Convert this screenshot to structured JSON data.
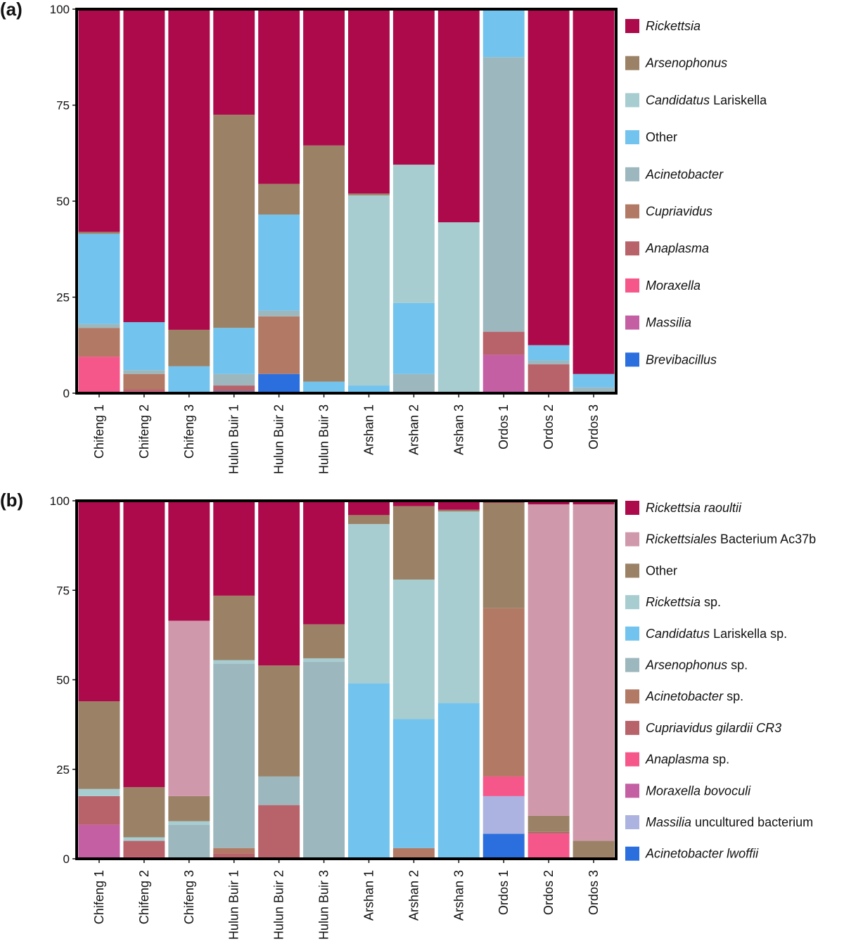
{
  "chart_data": [
    {
      "type": "bar",
      "stacked": true,
      "panel_label": "(a)",
      "title": "",
      "xlabel": "",
      "ylabel": "",
      "ylim": [
        0,
        100
      ],
      "yticks": [
        "0",
        "25",
        "50",
        "75",
        "100"
      ],
      "categories": [
        "Chifeng 1",
        "Chifeng 2",
        "Chifeng 3",
        "Hulun Buir 1",
        "Hulun Buir 2",
        "Hulun Buir 3",
        "Arshan 1",
        "Arshan 2",
        "Arshan 3",
        "Ordos 1",
        "Ordos 2",
        "Ordos 3"
      ],
      "legend": [
        {
          "text": "Rickettsia",
          "italic": "Rickettsia",
          "rest": ""
        },
        {
          "text": "Arsenophonus",
          "italic": "Arsenophonus",
          "rest": ""
        },
        {
          "text": "Candidatus Lariskella",
          "italic": "Candidatus",
          "rest": " Lariskella"
        },
        {
          "text": "Other",
          "italic": "",
          "rest": "Other"
        },
        {
          "text": "Acinetobacter",
          "italic": "Acinetobacter",
          "rest": ""
        },
        {
          "text": "Cupriavidus",
          "italic": "Cupriavidus",
          "rest": ""
        },
        {
          "text": "Anaplasma",
          "italic": "Anaplasma",
          "rest": ""
        },
        {
          "text": "Moraxella",
          "italic": "Moraxella",
          "rest": ""
        },
        {
          "text": "Massilia",
          "italic": "Massilia",
          "rest": ""
        },
        {
          "text": "Brevibacillus",
          "italic": "Brevibacillus",
          "rest": ""
        }
      ],
      "series": [
        {
          "name": "Brevibacillus",
          "color": "#2b6fde",
          "values": [
            0,
            0,
            0,
            0.5,
            5,
            0,
            0,
            0,
            0,
            0,
            0,
            0
          ]
        },
        {
          "name": "Massilia",
          "color": "#c45fa4",
          "values": [
            0,
            0,
            0,
            0,
            0,
            0,
            0,
            0,
            0,
            10,
            0,
            0
          ]
        },
        {
          "name": "Moraxella",
          "color": "#f5578a",
          "values": [
            9.5,
            0.5,
            0,
            0,
            0,
            0,
            0,
            0,
            0,
            0,
            0.5,
            0
          ]
        },
        {
          "name": "Anaplasma",
          "color": "#b8626a",
          "values": [
            0,
            0.5,
            0,
            1.5,
            0,
            0,
            0,
            0,
            0,
            6,
            7,
            0
          ]
        },
        {
          "name": "Cupriavidus",
          "color": "#b27964",
          "values": [
            7.5,
            4,
            0,
            0,
            15,
            0,
            0,
            0,
            0,
            0,
            0,
            0
          ]
        },
        {
          "name": "Acinetobacter",
          "color": "#9cb7bd",
          "values": [
            1,
            1,
            0,
            3,
            1.5,
            0,
            0,
            5,
            0,
            71.5,
            1,
            1.5
          ]
        },
        {
          "name": "Other",
          "color": "#72c3ed",
          "values": [
            23.5,
            12.5,
            7,
            12,
            25,
            3,
            2,
            18.5,
            0,
            12.5,
            4,
            3.5
          ]
        },
        {
          "name": "Candidatus Lariskella",
          "color": "#a7cdd1",
          "values": [
            0,
            0,
            0,
            0,
            0,
            0,
            49.5,
            36,
            44.5,
            0,
            0,
            0
          ]
        },
        {
          "name": "Arsenophonus",
          "color": "#9b8266",
          "values": [
            0.5,
            0,
            9.5,
            55.5,
            8,
            61.5,
            0.5,
            0,
            0,
            0,
            0,
            0
          ]
        },
        {
          "name": "Rickettsia",
          "color": "#ac0a4a",
          "values": [
            58,
            81.5,
            83.5,
            27.5,
            45.5,
            35.5,
            48,
            40.5,
            55.5,
            0,
            87.5,
            95
          ]
        }
      ]
    },
    {
      "type": "bar",
      "stacked": true,
      "panel_label": "(b)",
      "title": "",
      "xlabel": "",
      "ylabel": "",
      "ylim": [
        0,
        100
      ],
      "yticks": [
        "0",
        "25",
        "50",
        "75",
        "100"
      ],
      "categories": [
        "Chifeng 1",
        "Chifeng 2",
        "Chifeng 3",
        "Hulun Buir 1",
        "Hulun Buir 2",
        "Hulun Buir 3",
        "Arshan 1",
        "Arshan 2",
        "Arshan 3",
        "Ordos 1",
        "Ordos 2",
        "Ordos 3"
      ],
      "legend": [
        {
          "text": "Rickettsia raoultii",
          "italic": "Rickettsia raoultii",
          "rest": ""
        },
        {
          "text": "Rickettsiales Bacterium Ac37b",
          "italic": "Rickettsiales",
          "rest": " Bacterium Ac37b"
        },
        {
          "text": "Other",
          "italic": "",
          "rest": "Other"
        },
        {
          "text": "Rickettsia sp.",
          "italic": "Rickettsia",
          "rest": " sp."
        },
        {
          "text": "Candidatus Lariskella sp.",
          "italic": "Candidatus",
          "rest": " Lariskella sp."
        },
        {
          "text": "Arsenophonus sp.",
          "italic": "Arsenophonus",
          "rest": " sp."
        },
        {
          "text": "Acinetobacter sp.",
          "italic": "Acinetobacter",
          "rest": " sp."
        },
        {
          "text": "Cupriavidus gilardii CR3",
          "italic": "Cupriavidus gilardii CR3",
          "rest": ""
        },
        {
          "text": "Anaplasma sp.",
          "italic": "Anaplasma",
          "rest": " sp."
        },
        {
          "text": "Moraxella bovoculi",
          "italic": "Moraxella bovoculi",
          "rest": ""
        },
        {
          "text": "Massilia uncultured bacterium",
          "italic": "Massilia",
          "rest": " uncultured bacterium"
        },
        {
          "text": "Acinetobacter lwoffii",
          "italic": "Acinetobacter lwoffii",
          "rest": ""
        }
      ],
      "series": [
        {
          "name": "Acinetobacter lwoffii",
          "color": "#2b6fde",
          "values": [
            0,
            0,
            0,
            0,
            0,
            0,
            0,
            0,
            0,
            7,
            0,
            0
          ]
        },
        {
          "name": "Massilia uncultured bacterium",
          "color": "#adb3e0",
          "values": [
            0,
            0,
            0,
            0,
            0,
            0,
            0,
            0,
            0,
            10.5,
            0,
            0
          ]
        },
        {
          "name": "Moraxella bovoculi",
          "color": "#c45fa4",
          "values": [
            9.5,
            0,
            0,
            0,
            0,
            0,
            0,
            0,
            0,
            0,
            0,
            0
          ]
        },
        {
          "name": "Anaplasma sp.",
          "color": "#f5578a",
          "values": [
            0,
            0.5,
            0,
            0,
            0,
            0,
            0,
            0,
            0,
            5.5,
            7,
            0
          ]
        },
        {
          "name": "Cupriavidus gilardii CR3",
          "color": "#b8626a",
          "values": [
            8,
            4.5,
            0,
            1.5,
            15,
            0,
            0,
            0,
            0,
            0,
            0.5,
            0
          ]
        },
        {
          "name": "Acinetobacter sp.",
          "color": "#b27964",
          "values": [
            0,
            0,
            0,
            1.5,
            0,
            0,
            0,
            3,
            0,
            47,
            0,
            0.5
          ]
        },
        {
          "name": "Arsenophonus sp.",
          "color": "#9cb7bd",
          "values": [
            0,
            0,
            9.5,
            51.5,
            8,
            55,
            0,
            0,
            0,
            0,
            0,
            0
          ]
        },
        {
          "name": "Candidatus Lariskella sp.",
          "color": "#72c3ed",
          "values": [
            0,
            0,
            0,
            0,
            0,
            0,
            49,
            36,
            43.5,
            0,
            0,
            0
          ]
        },
        {
          "name": "Rickettsia sp.",
          "color": "#a7cdd1",
          "values": [
            2,
            1,
            1,
            1,
            0,
            1,
            44.5,
            39,
            53.5,
            0,
            0,
            0
          ]
        },
        {
          "name": "Other",
          "color": "#9b8266",
          "values": [
            24.5,
            14,
            7,
            18,
            31,
            9.5,
            2.5,
            20.5,
            0.5,
            29.5,
            4.5,
            4.5
          ]
        },
        {
          "name": "Rickettsiales Bacterium Ac37b",
          "color": "#cf99ab",
          "values": [
            0,
            0,
            49,
            0,
            0,
            0,
            0,
            0,
            0,
            0,
            87,
            94
          ]
        },
        {
          "name": "Rickettsia raoultii",
          "color": "#ac0a4a",
          "values": [
            56,
            80,
            33.5,
            26.5,
            46,
            34.5,
            4,
            1.5,
            2.5,
            0.5,
            1,
            1
          ]
        }
      ]
    }
  ]
}
